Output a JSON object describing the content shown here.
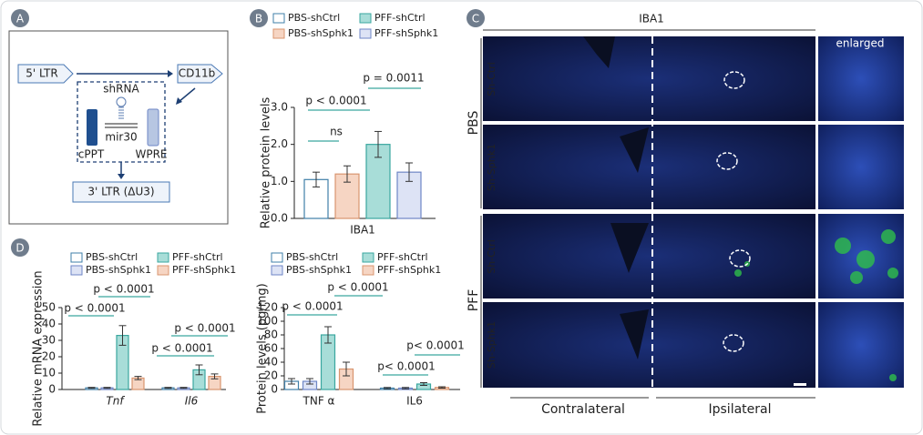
{
  "panels": [
    "A",
    "B",
    "C",
    "D"
  ],
  "diagram": {
    "five_ltr": "5' LTR",
    "cd11b": "CD11b",
    "shrna": "shRNA",
    "mir30": "mir30",
    "cppt": "cPPT",
    "wpre": "WPRE",
    "three_ltr": "3' LTR (ΔU3)"
  },
  "micrographs": {
    "title": "IBA1",
    "enlarged": "enlarged",
    "groups": [
      "PBS",
      "PFF"
    ],
    "rows": [
      "Sh-Ctrl",
      "Sh-Sphk1",
      "Sh-Ctrl",
      "Sh-Sphk1"
    ],
    "columns": [
      "Contralateral",
      "Ipsilateral"
    ]
  },
  "chart_data": [
    {
      "type": "bar",
      "ylabel": "Relative protein levels",
      "categories": [
        "IBA1"
      ],
      "series": [
        {
          "name": "PBS-shCtrl",
          "color": "#ffffff",
          "edgecolor": "#3f7fa8",
          "values": [
            1.05
          ],
          "errors": [
            0.2
          ]
        },
        {
          "name": "PBS-shSphk1",
          "color": "#f6d5c3",
          "edgecolor": "#d9956f",
          "values": [
            1.2
          ],
          "errors": [
            0.22
          ]
        },
        {
          "name": "PFF-shCtrl",
          "color": "#a8ddd8",
          "edgecolor": "#3aa79f",
          "values": [
            2.0
          ],
          "errors": [
            0.35
          ]
        },
        {
          "name": "PFF-shSphk1",
          "color": "#dde3f5",
          "edgecolor": "#6e86c6",
          "values": [
            1.25
          ],
          "errors": [
            0.25
          ]
        }
      ],
      "ylim": [
        0,
        3
      ],
      "yticks": [
        {
          "value": 0,
          "label": "0.0"
        },
        {
          "value": 1,
          "label": "1.0"
        },
        {
          "value": 2,
          "label": "2.0"
        },
        {
          "value": 3,
          "label": "3.0"
        }
      ],
      "annotations": [
        "ns",
        "p < 0.0001",
        "p = 0.0011"
      ]
    },
    {
      "type": "bar",
      "ylabel": "Relative mRNA expression",
      "categories": [
        "Tnf",
        "Il6"
      ],
      "series": [
        {
          "name": "PBS-shCtrl",
          "color": "#ffffff",
          "edgecolor": "#3f7fa8",
          "values": [
            1,
            1
          ],
          "errors": [
            0.3,
            0.3
          ]
        },
        {
          "name": "PBS-shSphk1",
          "color": "#dde3f5",
          "edgecolor": "#6e86c6",
          "values": [
            1,
            1
          ],
          "errors": [
            0.3,
            0.3
          ]
        },
        {
          "name": "PFF-shCtrl",
          "color": "#a8ddd8",
          "edgecolor": "#3aa79f",
          "values": [
            33,
            12
          ],
          "errors": [
            6,
            3
          ]
        },
        {
          "name": "PFF-shSphk1",
          "color": "#f6d5c3",
          "edgecolor": "#d9956f",
          "values": [
            7,
            8
          ],
          "errors": [
            1,
            1.5
          ]
        }
      ],
      "ylim": [
        0,
        50
      ],
      "yticks": [
        0,
        10,
        20,
        30,
        40,
        50
      ],
      "annotations": [
        "p < 0.0001",
        "p < 0.0001",
        "p < 0.0001",
        "p < 0.0001"
      ]
    },
    {
      "type": "bar",
      "ylabel": "Protein levels (pg/mg)",
      "categories": [
        "TNF α",
        "IL6"
      ],
      "series": [
        {
          "name": "PBS-shCtrl",
          "color": "#ffffff",
          "edgecolor": "#3f7fa8",
          "values": [
            12,
            2
          ],
          "errors": [
            4,
            1
          ]
        },
        {
          "name": "PBS-shSphk1",
          "color": "#dde3f5",
          "edgecolor": "#6e86c6",
          "values": [
            12,
            2
          ],
          "errors": [
            4,
            1
          ]
        },
        {
          "name": "PFF-shCtrl",
          "color": "#a8ddd8",
          "edgecolor": "#3aa79f",
          "values": [
            80,
            8
          ],
          "errors": [
            12,
            2
          ]
        },
        {
          "name": "PFF-shSphk1",
          "color": "#f6d5c3",
          "edgecolor": "#d9956f",
          "values": [
            30,
            3
          ],
          "errors": [
            10,
            1
          ]
        }
      ],
      "ylim": [
        0,
        120
      ],
      "yticks": [
        0,
        20,
        40,
        60,
        80,
        100,
        120
      ],
      "annotations": [
        "p < 0.0001",
        "p < 0.0001",
        "p< 0.0001",
        "p< 0.0001"
      ]
    }
  ]
}
